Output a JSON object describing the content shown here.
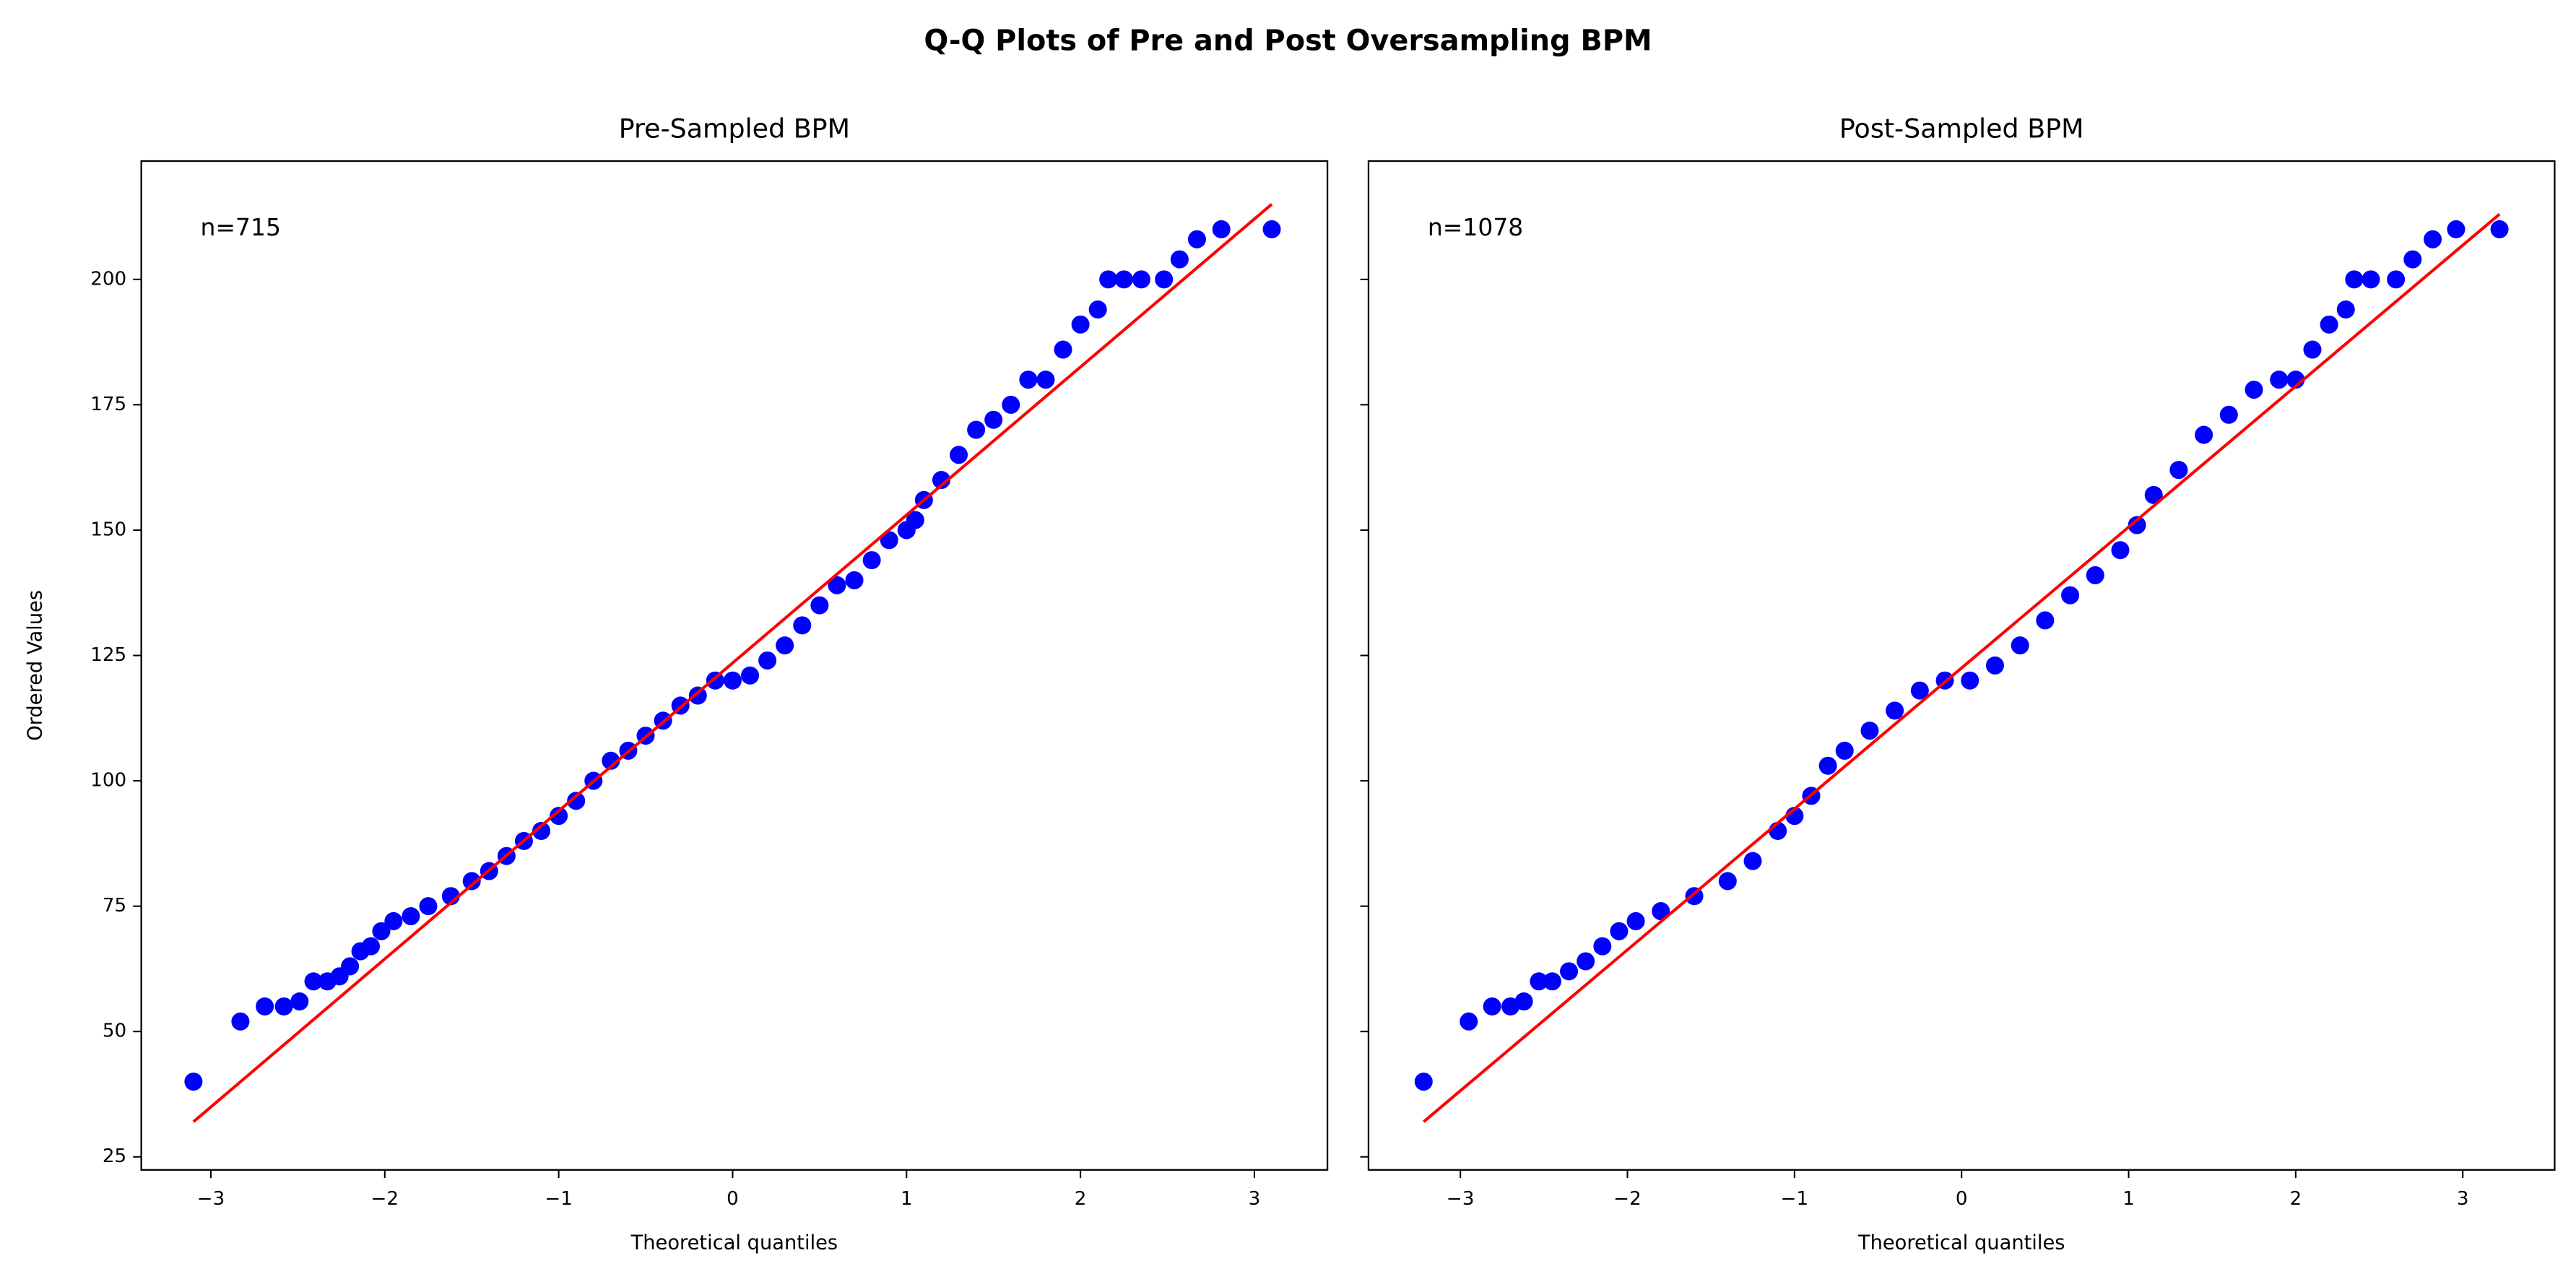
{
  "title": "Q-Q Plots of Pre and Post Oversampling BPM",
  "chart_data": [
    {
      "type": "scatter",
      "title": "Pre-Sampled BPM",
      "xlabel": "Theoretical quantiles",
      "ylabel": "Ordered Values",
      "annotation": "n=715",
      "xlim": [
        -3.4,
        3.42
      ],
      "ylim": [
        22.4,
        223.6
      ],
      "xticks": [
        {
          "value": -3,
          "label": "−3"
        },
        {
          "value": -2,
          "label": "−2"
        },
        {
          "value": -1,
          "label": "−1"
        },
        0,
        1,
        2,
        3
      ],
      "yticks": [
        25,
        50,
        75,
        100,
        125,
        150,
        175,
        200
      ],
      "ytick_labels": true,
      "series": [
        {
          "color": "#0000ff",
          "x": [
            -3.1,
            -2.83,
            -2.69,
            -2.58,
            -2.49,
            -2.41,
            -2.33,
            -2.26,
            -2.2,
            -2.14,
            -2.08,
            -2.02,
            -1.95,
            -1.85,
            -1.75,
            -1.62,
            -1.5,
            -1.4,
            -1.3,
            -1.2,
            -1.1,
            -1.0,
            -0.9,
            -0.8,
            -0.7,
            -0.6,
            -0.5,
            -0.4,
            -0.3,
            -0.2,
            -0.1,
            0,
            0.1,
            0.2,
            0.3,
            0.4,
            0.5,
            0.6,
            0.7,
            0.8,
            0.9,
            1.0,
            1.05,
            1.1,
            1.2,
            1.3,
            1.4,
            1.5,
            1.6,
            1.7,
            1.8,
            1.9,
            2.0,
            2.1,
            2.16,
            2.25,
            2.35,
            2.48,
            2.57,
            2.67,
            2.81,
            3.1
          ],
          "values": [
            40,
            52,
            55,
            55,
            56,
            60,
            60,
            61,
            63,
            66,
            67,
            70,
            72,
            73,
            75,
            77,
            80,
            82,
            85,
            88,
            90,
            93,
            96,
            100,
            104,
            106,
            109,
            112,
            115,
            117,
            120,
            120,
            121,
            124,
            127,
            131,
            135,
            139,
            140,
            144,
            148,
            150,
            152,
            156,
            160,
            165,
            170,
            172,
            175,
            180,
            180,
            186,
            191,
            194,
            200,
            200,
            200,
            200,
            204,
            208,
            210,
            210
          ]
        },
        {
          "color": "#ff0000",
          "line": true,
          "x": [
            -3.1,
            3.1
          ],
          "values": [
            32,
            215
          ]
        }
      ]
    },
    {
      "type": "scatter",
      "title": "Post-Sampled BPM",
      "xlabel": "Theoretical quantiles",
      "annotation": "n=1078",
      "xlim": [
        -3.55,
        3.55
      ],
      "ylim": [
        22.4,
        223.6
      ],
      "xticks": [
        {
          "value": -3,
          "label": "−3"
        },
        {
          "value": -2,
          "label": "−2"
        },
        {
          "value": -1,
          "label": "−1"
        },
        0,
        1,
        2,
        3
      ],
      "yticks": [
        25,
        50,
        75,
        100,
        125,
        150,
        175,
        200
      ],
      "ytick_labels": false,
      "series": [
        {
          "color": "#0000ff",
          "x": [
            -3.22,
            -2.95,
            -2.81,
            -2.7,
            -2.62,
            -2.53,
            -2.45,
            -2.35,
            -2.25,
            -2.15,
            -2.05,
            -1.95,
            -1.8,
            -1.6,
            -1.4,
            -1.25,
            -1.1,
            -1.0,
            -0.9,
            -0.8,
            -0.7,
            -0.55,
            -0.4,
            -0.25,
            -0.1,
            0.05,
            0.2,
            0.35,
            0.5,
            0.65,
            0.8,
            0.95,
            1.05,
            1.15,
            1.3,
            1.45,
            1.6,
            1.75,
            1.9,
            2.0,
            2.1,
            2.2,
            2.3,
            2.35,
            2.45,
            2.6,
            2.7,
            2.82,
            2.96,
            3.22
          ],
          "values": [
            40,
            52,
            55,
            55,
            56,
            60,
            60,
            62,
            64,
            67,
            70,
            72,
            74,
            77,
            80,
            84,
            90,
            93,
            97,
            103,
            106,
            110,
            114,
            118,
            120,
            120,
            123,
            127,
            132,
            137,
            141,
            146,
            151,
            157,
            162,
            169,
            173,
            178,
            180,
            180,
            186,
            191,
            194,
            200,
            200,
            200,
            204,
            208,
            210,
            210
          ]
        },
        {
          "color": "#ff0000",
          "line": true,
          "x": [
            -3.22,
            3.22
          ],
          "values": [
            32,
            213
          ]
        }
      ]
    }
  ]
}
